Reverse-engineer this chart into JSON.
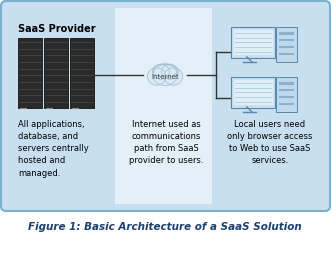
{
  "fig_width": 3.31,
  "fig_height": 2.64,
  "dpi": 100,
  "bg_color": "#ffffff",
  "outer_box_facecolor": "#c8dff0",
  "outer_box_edgecolor": "#7ab0d0",
  "left_panel_color": "#c8dff0",
  "center_panel_color": "#e4f0f8",
  "right_panel_color": "#c8dff0",
  "title": "Figure 1: Basic Architecture of a SaaS Solution",
  "title_color": "#1a4070",
  "title_fontsize": 7.5,
  "saas_label": "SaaS Provider",
  "internet_label": "Internet",
  "left_text": "All applications,\ndatabase, and\nservers centrally\nhosted and\nmanaged.",
  "center_text": "Internet used as\ncommunications\npath from SaaS\nprovider to users.",
  "right_text": "Local users need\nonly browser access\nto Web to use SaaS\nservices.",
  "text_fontsize": 6.0,
  "label_fontsize": 7.0,
  "line_color": "#333333"
}
